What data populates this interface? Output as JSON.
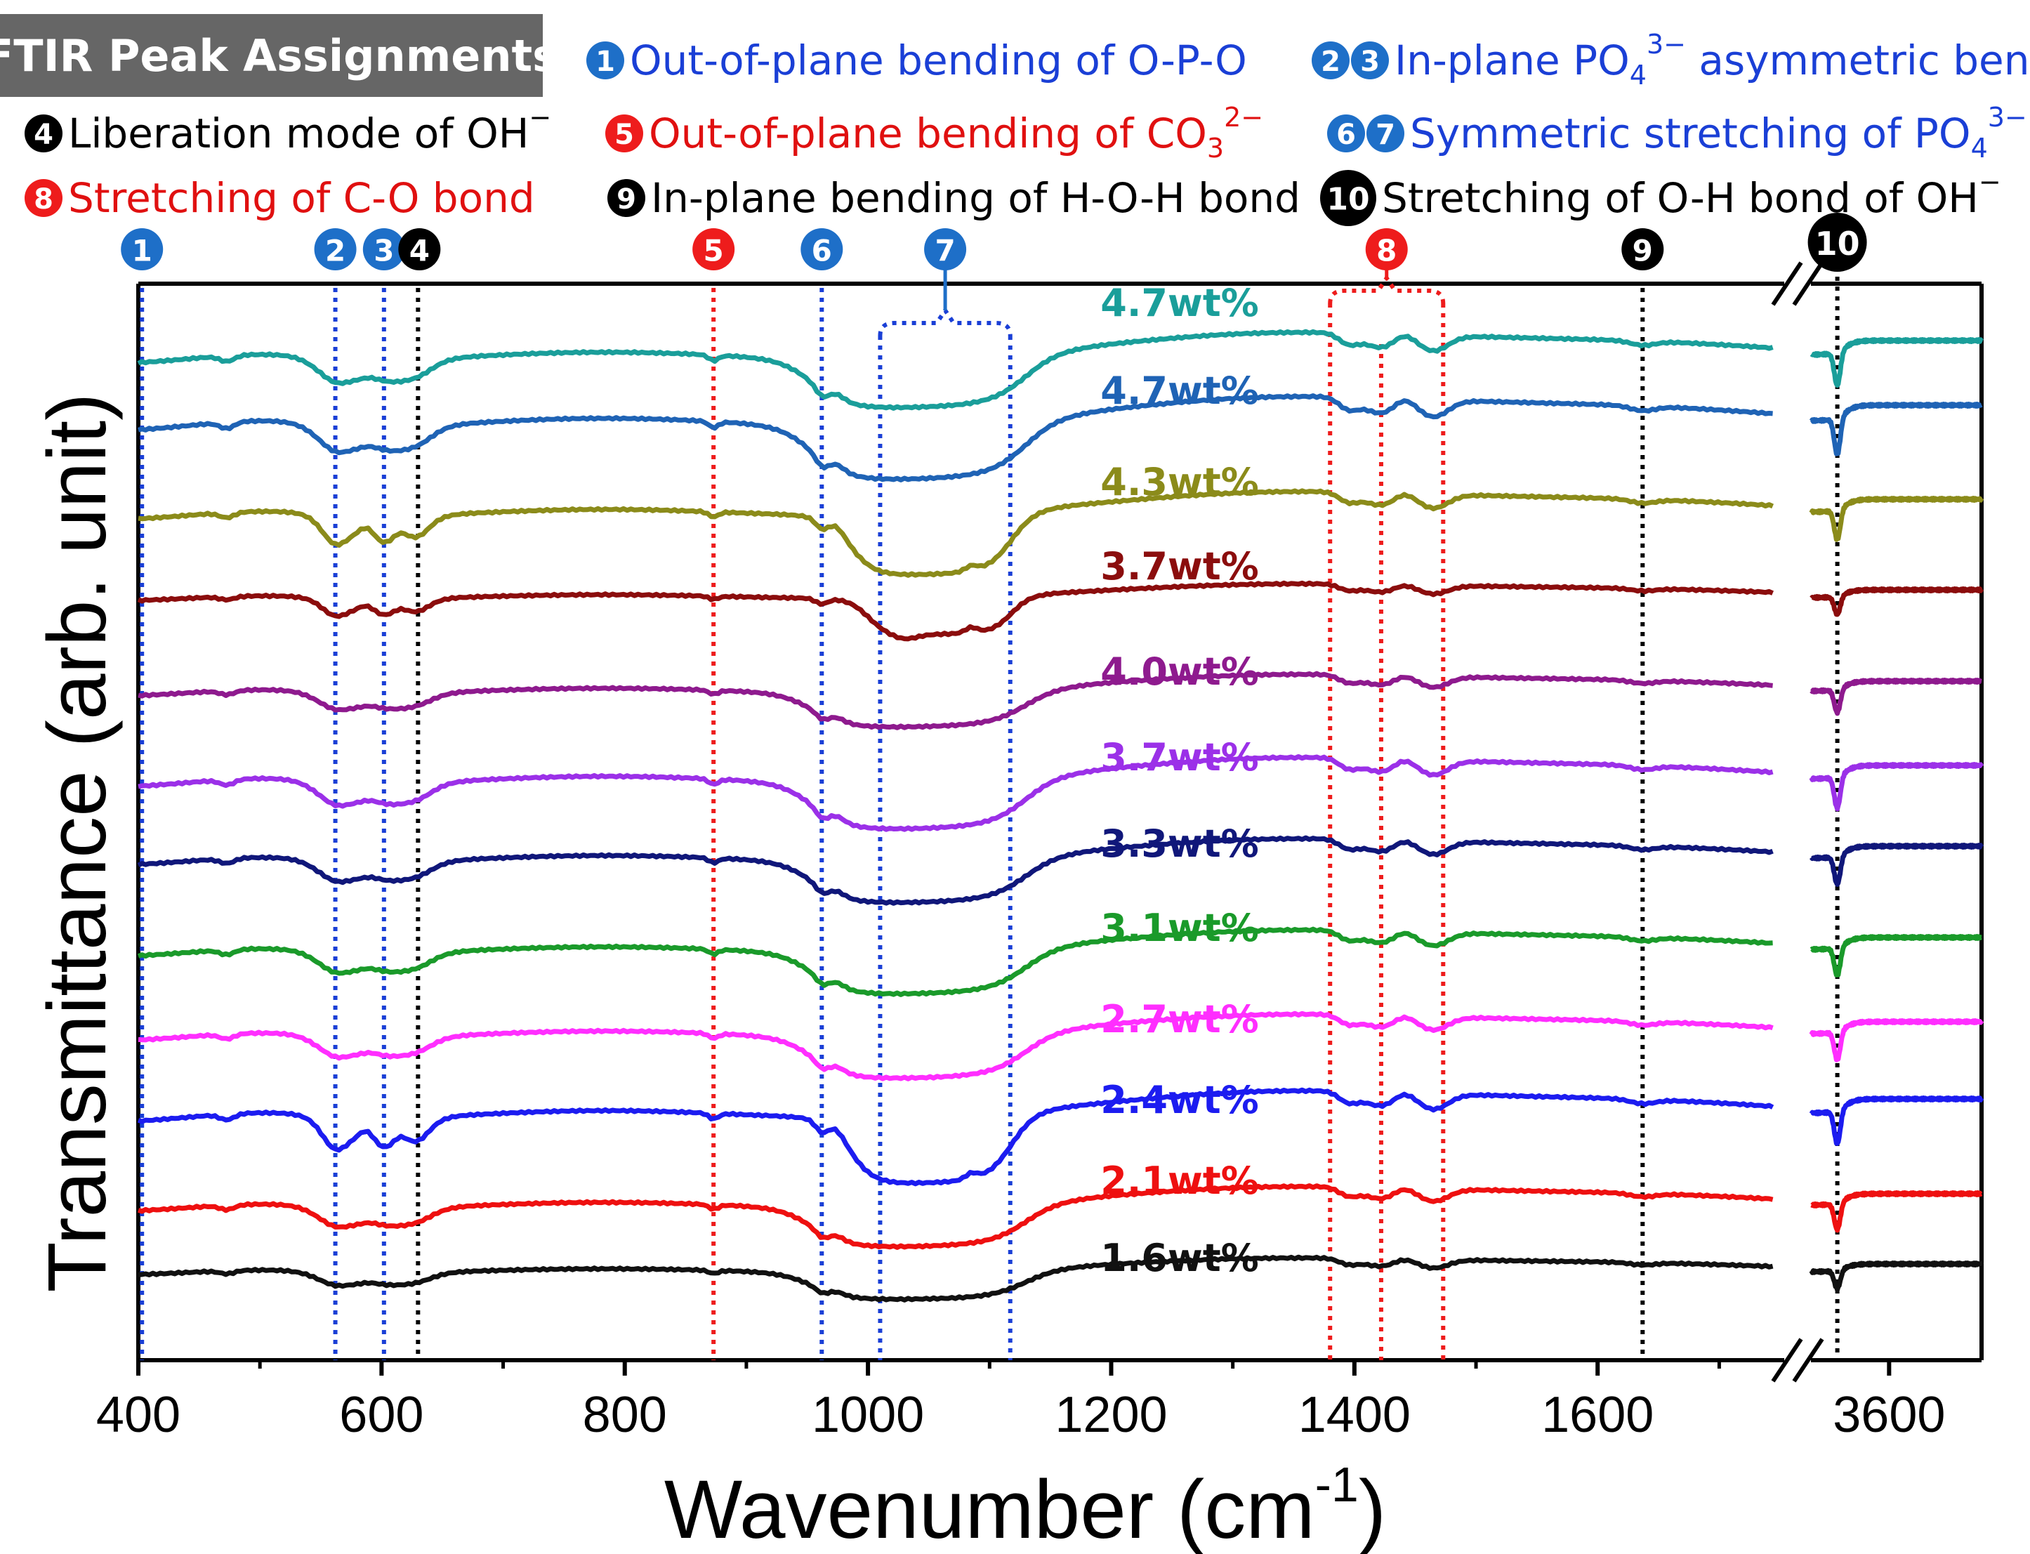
{
  "header": {
    "title": "FTIR Peak Assignments"
  },
  "assignments": [
    {
      "nums": [
        "1"
      ],
      "color": "#1e6fc8",
      "text": "Out-of-plane bending of O-P-O",
      "text_color": "#1a3fd6"
    },
    {
      "nums": [
        "2",
        "3"
      ],
      "color": "#1e6fc8",
      "text": "In-plane PO",
      "sub": "4",
      "sup": "3−",
      "text2": " asymmetric bend",
      "text_color": "#1a3fd6"
    },
    {
      "nums": [
        "4"
      ],
      "color": "#000000",
      "text": "Liberation mode of OH",
      "sup": "−",
      "text_color": "#000000"
    },
    {
      "nums": [
        "5"
      ],
      "color": "#ee1c1c",
      "text": "Out-of-plane bending of CO",
      "sub": "3",
      "sup": "2−",
      "text_color": "#e01010"
    },
    {
      "nums": [
        "6",
        "7"
      ],
      "color": "#1e6fc8",
      "text": "Symmetric stretching of PO",
      "sub": "4",
      "sup": "3−",
      "text_color": "#1a3fd6"
    },
    {
      "nums": [
        "8"
      ],
      "color": "#ee1c1c",
      "text": "Stretching of C-O bond",
      "text_color": "#e01010"
    },
    {
      "nums": [
        "9"
      ],
      "color": "#000000",
      "text": "In-plane bending of H-O-H bond",
      "text_color": "#000000"
    },
    {
      "nums": [
        "10"
      ],
      "color": "#000000",
      "text": "Stretching of O-H bond of OH",
      "sup": "−",
      "text_color": "#000000"
    }
  ],
  "chart_data": {
    "type": "line",
    "title": "FTIR Peak Assignments",
    "xlabel": "Wavenumber (cm",
    "xlabel_sup": "-1",
    "xlabel_close": ")",
    "ylabel": "Transmittance (arb. unit)",
    "xlim_main": [
      400,
      1750
    ],
    "xlim_break": [
      3560,
      3650
    ],
    "x_ticks": [
      {
        "value": 400,
        "label": "400"
      },
      {
        "value": 600,
        "label": "600"
      },
      {
        "value": 800,
        "label": "800"
      },
      {
        "value": 1000,
        "label": "1000"
      },
      {
        "value": 1200,
        "label": "1200"
      },
      {
        "value": 1400,
        "label": "1400"
      },
      {
        "value": 1600,
        "label": "1600"
      },
      {
        "value": 3600,
        "label": "3600"
      }
    ],
    "peaks": [
      {
        "id": "1",
        "x": 403,
        "color": "#1a3fd6",
        "badge": "#1e6fc8"
      },
      {
        "id": "2",
        "x": 562,
        "color": "#1a3fd6",
        "badge": "#1e6fc8"
      },
      {
        "id": "3",
        "x": 602,
        "color": "#1a3fd6",
        "badge": "#1e6fc8"
      },
      {
        "id": "4",
        "x": 630,
        "color": "#000000",
        "badge": "#000000"
      },
      {
        "id": "5",
        "x": 873,
        "color": "#ee1c1c",
        "badge": "#ee1c1c"
      },
      {
        "id": "6",
        "x": 962,
        "color": "#1a3fd6",
        "badge": "#1e6fc8"
      },
      {
        "id": "7",
        "x_range": [
          1010,
          1117
        ],
        "color": "#1a3fd6",
        "badge": "#1e6fc8"
      },
      {
        "id": "8",
        "x_range": [
          1380,
          1473
        ],
        "x_center_line": 1422,
        "color": "#ee1c1c",
        "badge": "#ee1c1c"
      },
      {
        "id": "9",
        "x": 1637,
        "color": "#000000",
        "badge": "#000000"
      },
      {
        "id": "10",
        "x": 3572,
        "color": "#000000",
        "badge": "#000000"
      }
    ],
    "series": [
      {
        "name": "4.7wt%",
        "color": "#1a9e9a",
        "profile": 0
      },
      {
        "name": "4.7wt%",
        "color": "#1f63b5",
        "profile": 0
      },
      {
        "name": "4.3wt%",
        "color": "#8b8b1a",
        "profile": 1
      },
      {
        "name": "3.7wt%",
        "color": "#8b0d0d",
        "profile": 2
      },
      {
        "name": "4.0wt%",
        "color": "#8e1a8e",
        "profile": 0
      },
      {
        "name": "3.7wt%",
        "color": "#9b30e8",
        "profile": 0
      },
      {
        "name": "3.3wt%",
        "color": "#10177a",
        "profile": 0
      },
      {
        "name": "3.1wt%",
        "color": "#1a9a2a",
        "profile": 0
      },
      {
        "name": "2.7wt%",
        "color": "#ff2eff",
        "profile": 0
      },
      {
        "name": "2.4wt%",
        "color": "#1c1cf0",
        "profile": 1
      },
      {
        "name": "2.1wt%",
        "color": "#ee1010",
        "profile": 0
      },
      {
        "name": "1.6wt%",
        "color": "#111111",
        "profile": 0
      }
    ]
  }
}
